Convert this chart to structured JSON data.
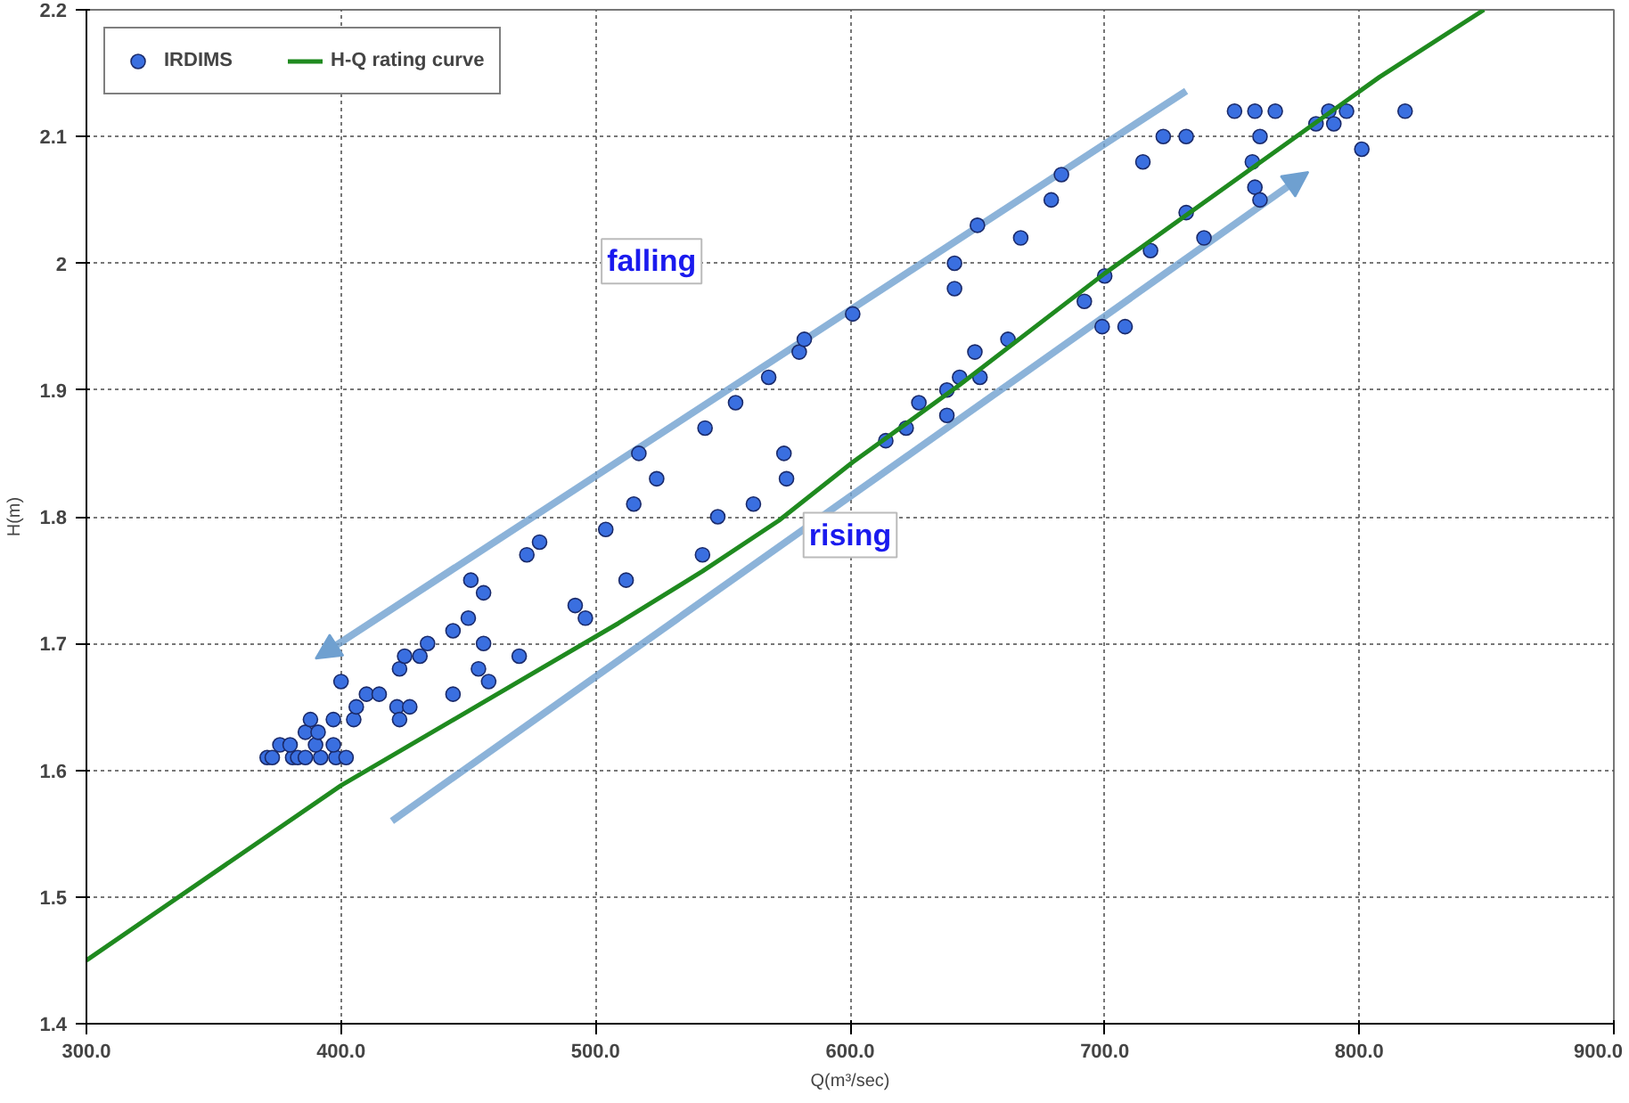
{
  "chart_data": {
    "type": "scatter",
    "xlabel": "Q(m³/sec)",
    "ylabel": "H(m)",
    "xlim": [
      300,
      900
    ],
    "ylim": [
      1.4,
      2.2
    ],
    "xticks": [
      {
        "value": 300,
        "label": "300.0"
      },
      {
        "value": 400,
        "label": "400.0"
      },
      {
        "value": 500,
        "label": "500.0"
      },
      {
        "value": 600,
        "label": "600.0"
      },
      {
        "value": 700,
        "label": "700.0"
      },
      {
        "value": 800,
        "label": "800.0"
      },
      {
        "value": 900,
        "label": "900.0"
      }
    ],
    "yticks": [
      1.4,
      1.5,
      1.6,
      1.7,
      1.8,
      1.9,
      2.0,
      2.1,
      2.2
    ],
    "grid": true,
    "legend": "top left",
    "annotations": [
      "falling",
      "rising"
    ],
    "series": [
      {
        "name": "IRDIMS",
        "marker": "circle",
        "color": "#3a6fe0",
        "x": [
          371,
          373,
          381,
          383,
          386,
          392,
          398,
          402,
          376,
          380,
          390,
          397,
          386,
          391,
          388,
          397,
          400,
          405,
          406,
          410,
          415,
          422,
          427,
          423,
          423,
          425,
          431,
          434,
          444,
          450,
          451,
          456,
          456,
          454,
          458,
          444,
          470,
          473,
          478,
          492,
          496,
          504,
          512,
          515,
          517,
          524,
          542,
          548,
          543,
          555,
          562,
          568,
          574,
          575,
          580,
          582,
          601,
          614,
          622,
          627,
          638,
          638,
          643,
          649,
          651,
          641,
          641,
          662,
          650,
          667,
          679,
          683,
          692,
          700,
          699,
          708,
          718,
          732,
          739,
          715,
          723,
          732,
          751,
          758,
          759,
          761,
          761,
          767,
          783,
          788,
          790,
          795,
          801,
          818,
          759
        ],
        "values": [
          1.61,
          1.61,
          1.61,
          1.61,
          1.61,
          1.61,
          1.61,
          1.61,
          1.62,
          1.62,
          1.62,
          1.62,
          1.63,
          1.63,
          1.64,
          1.64,
          1.67,
          1.64,
          1.65,
          1.66,
          1.66,
          1.65,
          1.65,
          1.64,
          1.68,
          1.69,
          1.69,
          1.7,
          1.71,
          1.72,
          1.75,
          1.74,
          1.7,
          1.68,
          1.67,
          1.66,
          1.69,
          1.77,
          1.78,
          1.73,
          1.72,
          1.79,
          1.75,
          1.81,
          1.85,
          1.83,
          1.77,
          1.8,
          1.87,
          1.89,
          1.81,
          1.91,
          1.85,
          1.83,
          1.93,
          1.94,
          1.96,
          1.86,
          1.87,
          1.89,
          1.9,
          1.88,
          1.91,
          1.93,
          1.91,
          2.0,
          1.98,
          1.94,
          2.03,
          2.02,
          2.05,
          2.07,
          1.97,
          1.99,
          1.95,
          1.95,
          2.01,
          2.04,
          2.02,
          2.08,
          2.1,
          2.1,
          2.12,
          2.08,
          2.06,
          2.05,
          2.1,
          2.12,
          2.11,
          2.12,
          2.11,
          2.12,
          2.09,
          2.12,
          2.12
        ]
      },
      {
        "name": "H-Q rating curve",
        "type": "line",
        "marker": "none",
        "line_style": "solid",
        "color": "#1f8a1f",
        "x": [
          300,
          400,
          509,
          542,
          572,
          601,
          643,
          700,
          808,
          849
        ],
        "values": [
          1.45,
          1.588,
          1.716,
          1.757,
          1.797,
          1.843,
          1.904,
          1.992,
          2.147,
          2.2
        ]
      }
    ]
  }
}
